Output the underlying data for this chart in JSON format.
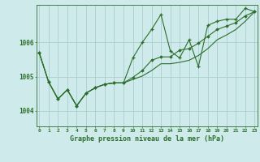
{
  "title": "Graphe pression niveau de la mer (hPa)",
  "bg_color": "#ceeaea",
  "grid_color": "#aacfcf",
  "line_color": "#2d6e2d",
  "x_labels": [
    "0",
    "1",
    "2",
    "3",
    "4",
    "5",
    "6",
    "7",
    "8",
    "9",
    "10",
    "11",
    "12",
    "13",
    "14",
    "15",
    "16",
    "17",
    "18",
    "19",
    "20",
    "21",
    "22",
    "23"
  ],
  "yticks": [
    1004,
    1005,
    1006
  ],
  "ylim": [
    1003.55,
    1007.1
  ],
  "xlim": [
    -0.3,
    23.3
  ],
  "series1_x": [
    0,
    1,
    2,
    3,
    4,
    5,
    6,
    7,
    8,
    9,
    10,
    11,
    12,
    13,
    14,
    15,
    16,
    17,
    18,
    19,
    20,
    21,
    22,
    23
  ],
  "series1_y": [
    1005.7,
    1004.85,
    1004.35,
    1004.62,
    1004.15,
    1004.52,
    1004.68,
    1004.78,
    1004.82,
    1004.82,
    1005.55,
    1006.0,
    1006.38,
    1006.82,
    1005.75,
    1005.55,
    1006.08,
    1005.3,
    1006.5,
    1006.62,
    1006.68,
    1006.68,
    1007.0,
    1006.9
  ],
  "series2_x": [
    0,
    1,
    2,
    3,
    4,
    5,
    6,
    7,
    8,
    9,
    10,
    11,
    12,
    13,
    14,
    15,
    16,
    17,
    18,
    19,
    20,
    21,
    22,
    23
  ],
  "series2_y": [
    1005.7,
    1004.85,
    1004.35,
    1004.62,
    1004.15,
    1004.52,
    1004.68,
    1004.78,
    1004.82,
    1004.82,
    1004.98,
    1005.18,
    1005.48,
    1005.58,
    1005.58,
    1005.78,
    1005.82,
    1005.98,
    1006.18,
    1006.38,
    1006.48,
    1006.58,
    1006.78,
    1006.9
  ],
  "series3_x": [
    0,
    1,
    2,
    3,
    4,
    5,
    6,
    7,
    8,
    9,
    10,
    11,
    12,
    13,
    14,
    15,
    16,
    17,
    18,
    19,
    20,
    21,
    22,
    23
  ],
  "series3_y": [
    1005.7,
    1004.85,
    1004.35,
    1004.62,
    1004.15,
    1004.52,
    1004.68,
    1004.78,
    1004.82,
    1004.82,
    1004.92,
    1005.02,
    1005.18,
    1005.38,
    1005.38,
    1005.42,
    1005.48,
    1005.62,
    1005.82,
    1006.08,
    1006.22,
    1006.38,
    1006.62,
    1006.9
  ]
}
